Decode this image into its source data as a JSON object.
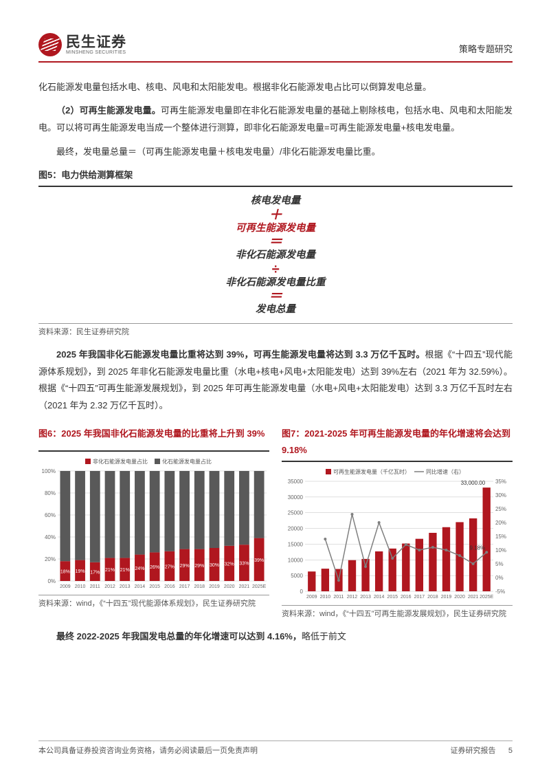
{
  "header": {
    "company_cn": "民生证券",
    "company_en": "MINSHENG SECURITIES",
    "section_title": "策略专题研究",
    "line_color": "#b0171f"
  },
  "text": {
    "p1": "化石能源发电量包括水电、核电、风电和太阳能发电。根据非化石能源发电占比可以倒算发电总量。",
    "p2_lead": "（2）可再生能源发电量。",
    "p2_body": "可再生能源发电量即在非化石能源发电量的基础上剔除核电，包括水电、风电和太阳能发电。可以将可再生能源发电当成一个整体进行测算，即非化石能源发电量=可再生能源发电量+核电发电量。",
    "p3": "最终，发电量总量＝（可再生能源发电量＋核电发电量）/非化石能源发电量比重。",
    "p4a": "2025 年我国非化石能源发电量比重将达到 39%，可再生能源发电量将达到 3.3 万亿千瓦时。",
    "p4b": "根据《“十四五”现代能源体系规划》，到 2025 年非化石能源发电量比重（水电+核电+风电+太阳能发电）达到 39%左右（2021 年为 32.59%）。根据《“十四五”可再生能源发展规划》，到 2025 年可再生能源发电量（水电+风电+太阳能发电）达到 3.3 万亿千瓦时左右（2021 年为 2.32 万亿千瓦时）。",
    "p5_lead": "最终 2022-2025 年我国发电总量的年化增速可以达到 4.16%，",
    "p5_tail": "略低于前文"
  },
  "fig5": {
    "title": "图5：电力供给测算框架",
    "rows": [
      "核电发电量",
      "可再生能源发电量",
      "非化石能源发电量",
      "非化石能源发电量比重",
      "发电总量"
    ],
    "ops": [
      "＋",
      "＝",
      "÷",
      "＝"
    ],
    "source": "资料来源：民生证券研究院"
  },
  "fig6": {
    "title": "图6：2025 年我国非化石能源发电量的比重将上升到 39%",
    "type": "stacked-bar-100",
    "categories": [
      "2009",
      "2010",
      "2011",
      "2012",
      "2013",
      "2014",
      "2015",
      "2016",
      "2017",
      "2018",
      "2019",
      "2020",
      "2021",
      "2025E"
    ],
    "series": [
      {
        "name": "非化石能源发电量占比",
        "color": "#b0171f",
        "values": [
          18,
          19,
          17,
          21,
          21,
          24,
          26,
          27,
          29,
          29,
          30,
          32,
          33,
          39
        ]
      },
      {
        "name": "化石能源发电量占比",
        "color": "#595959",
        "values": [
          82,
          81,
          83,
          79,
          79,
          76,
          74,
          73,
          71,
          71,
          70,
          68,
          67,
          61
        ]
      }
    ],
    "y_ticks": [
      0,
      20,
      40,
      60,
      80,
      100
    ],
    "y_suffix": "%",
    "bg": "#ffffff",
    "grid": "#bfbfbf",
    "legend_pos": "top",
    "label_fontsize": 7,
    "axis_fontsize": 8,
    "title_color": "#b0171f",
    "source": "资料来源：wind，《“十四五”现代能源体系规划》，民生证券研究院"
  },
  "fig7": {
    "title": "图7：2021-2025 年可再生能源发电量的年化增速将会达到 9.18%",
    "type": "bar-line-dual-axis",
    "categories": [
      "2009",
      "2010",
      "2011",
      "2012",
      "2013",
      "2014",
      "2015",
      "2016",
      "2017",
      "2018",
      "2019",
      "2020",
      "2021",
      "2025E"
    ],
    "bar": {
      "name": "可再生能源发电量（千亿瓦时）",
      "color": "#b0171f",
      "values": [
        6300,
        7200,
        7100,
        9900,
        10300,
        12700,
        13600,
        15200,
        16700,
        18600,
        20400,
        22000,
        23200,
        33000
      ]
    },
    "line": {
      "name": "同比增速（右）",
      "color": "#7f7f7f",
      "values": [
        null,
        14,
        -1,
        23,
        4,
        20,
        7,
        12,
        10,
        11,
        10,
        8,
        5,
        9.18
      ]
    },
    "annotations": [
      {
        "text": "33,000.00",
        "x_index": 13,
        "y": 33000,
        "axis": "left"
      },
      {
        "text": "9.18%",
        "x_index": 13,
        "y": 9.18,
        "axis": "right"
      }
    ],
    "y_left": {
      "min": 0,
      "max": 35000,
      "step": 5000
    },
    "y_right": {
      "min": -5,
      "max": 35,
      "step": 5,
      "suffix": "%"
    },
    "bg": "#ffffff",
    "grid": "#bfbfbf",
    "legend_pos": "top",
    "axis_fontsize": 8,
    "label_fontsize": 7,
    "title_color": "#b0171f",
    "source": "资料来源：wind，《“十四五”可再生能源发展规划》，民生证券研究院"
  },
  "footer": {
    "left": "本公司具备证券投资咨询业务资格，请务必阅读最后一页免责声明",
    "right_label": "证券研究报告",
    "page": "5"
  }
}
